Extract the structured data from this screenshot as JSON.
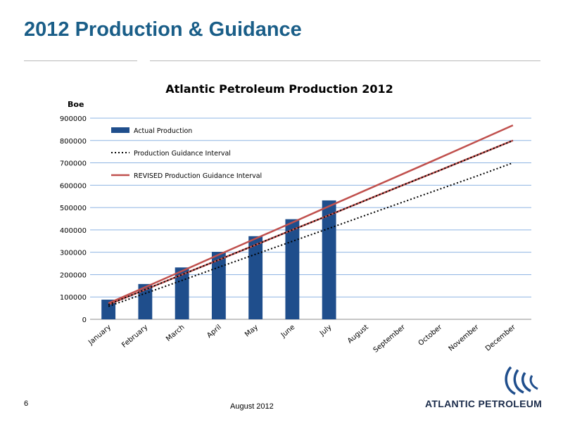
{
  "slide": {
    "title": "2012 Production & Guidance",
    "page_number": "6",
    "footer_date": "August 2012",
    "logo_text": "ATLANTIC PETROLEUM"
  },
  "colors": {
    "title": "#1a5e88",
    "bar": "#1f4e8c",
    "revised_line": "#c0504d",
    "guidance_dots": "#000000",
    "gridline": "#8eb4e3"
  },
  "chart_data": {
    "type": "bar",
    "title": "Atlantic Petroleum Production 2012",
    "ylabel": "Boe",
    "xlabel": "",
    "ylim": [
      0,
      900000
    ],
    "yticks": [
      0,
      100000,
      200000,
      300000,
      400000,
      500000,
      600000,
      700000,
      800000,
      900000
    ],
    "grid": true,
    "legend_position": "top-left",
    "categories": [
      "January",
      "February",
      "March",
      "April",
      "May",
      "June",
      "July",
      "August",
      "September",
      "October",
      "November",
      "December"
    ],
    "series": [
      {
        "name": "Actual Production",
        "kind": "bar",
        "values": [
          88000,
          158000,
          232000,
          302000,
          372000,
          448000,
          532000,
          null,
          null,
          null,
          null,
          null
        ]
      },
      {
        "name": "Production Guidance Interval",
        "kind": "dotted-line",
        "lines": [
          {
            "values": [
              58000,
              116000,
              174000,
              233000,
              291000,
              349000,
              407000,
              466000,
              524000,
              582000,
              640000,
              700000
            ]
          },
          {
            "values": [
              66000,
              133000,
              200000,
              266000,
              333000,
              400000,
              466000,
              533000,
              600000,
              666000,
              733000,
              800000
            ]
          }
        ]
      },
      {
        "name": "REVISED Production Guidance Interval",
        "kind": "line",
        "lines": [
          {
            "values": [
              66000,
              133000,
              200000,
              266000,
              333000,
              400000,
              466000,
              533000,
              600000,
              666000,
              733000,
              800000
            ]
          },
          {
            "values": [
              72000,
              144000,
              216000,
              289000,
              361000,
              433000,
              506000,
              578000,
              650000,
              722000,
              795000,
              868000
            ]
          }
        ]
      }
    ]
  }
}
